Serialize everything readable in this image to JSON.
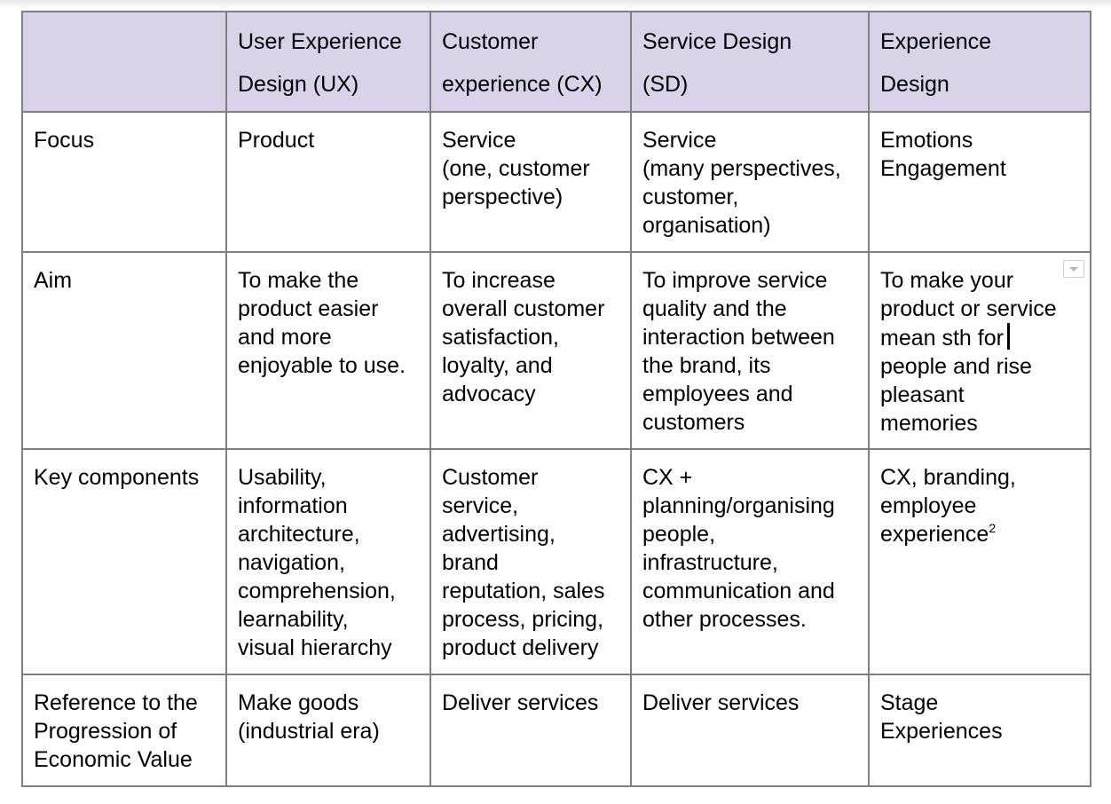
{
  "table": {
    "header": [
      "",
      "User Experience Design (UX)",
      "Customer experience (CX)",
      "Service Design (SD)",
      "Experience Design"
    ],
    "header_lines": [
      [],
      [
        "User Experience",
        "Design (UX)"
      ],
      [
        "Customer",
        "experience (CX)"
      ],
      [
        "Service Design",
        "(SD)"
      ],
      [
        "Experience",
        "Design"
      ]
    ],
    "rows": {
      "focus": {
        "label": [
          "Focus"
        ],
        "ux": [
          "Product"
        ],
        "cx": [
          "Service",
          "(one, customer",
          "perspective)"
        ],
        "sd": [
          "Service",
          "(many perspectives,",
          "customer,",
          "organisation)"
        ],
        "ed": [
          "Emotions",
          "Engagement"
        ]
      },
      "aim": {
        "label": [
          "Aim"
        ],
        "ux": [
          "To make the",
          "product easier",
          "and more",
          "enjoyable to use."
        ],
        "cx": [
          "To increase",
          "overall customer",
          "satisfaction,",
          "loyalty, and",
          "advocacy"
        ],
        "sd": [
          "To improve service",
          "quality and the",
          "interaction between",
          "the brand, its",
          "employees and",
          "customers"
        ],
        "ed": [
          "To make your",
          "product or service",
          "mean sth for",
          "people and rise",
          "pleasant",
          "memories"
        ]
      },
      "key": {
        "label": [
          "Key components"
        ],
        "ux": [
          "Usability,",
          "information",
          "architecture,",
          "navigation,",
          "comprehension,",
          "learnability,",
          "visual hierarchy"
        ],
        "cx": [
          "Customer",
          "service,",
          "advertising,",
          "brand",
          "reputation, sales",
          "process, pricing,",
          "product delivery"
        ],
        "sd": [
          "CX +",
          "planning/organising",
          "people,",
          "infrastructure,",
          "communication and",
          "other processes."
        ],
        "ed": [
          "CX, branding,",
          "employee",
          "experience"
        ],
        "ed_footnote": "2"
      },
      "ref": {
        "label": [
          "Reference to the",
          "Progression of",
          "Economic Value"
        ],
        "ux": [
          "Make goods",
          "(industrial era)"
        ],
        "cx": [
          "Deliver services"
        ],
        "sd": [
          "Deliver services"
        ],
        "ed": [
          "Stage",
          "Experiences"
        ]
      }
    }
  },
  "colors": {
    "header_bg": "#d9d2e9",
    "border": "#7f7f7f"
  },
  "icons": {
    "cell_menu": "chevron-down-icon",
    "text_cursor": "text-cursor"
  }
}
